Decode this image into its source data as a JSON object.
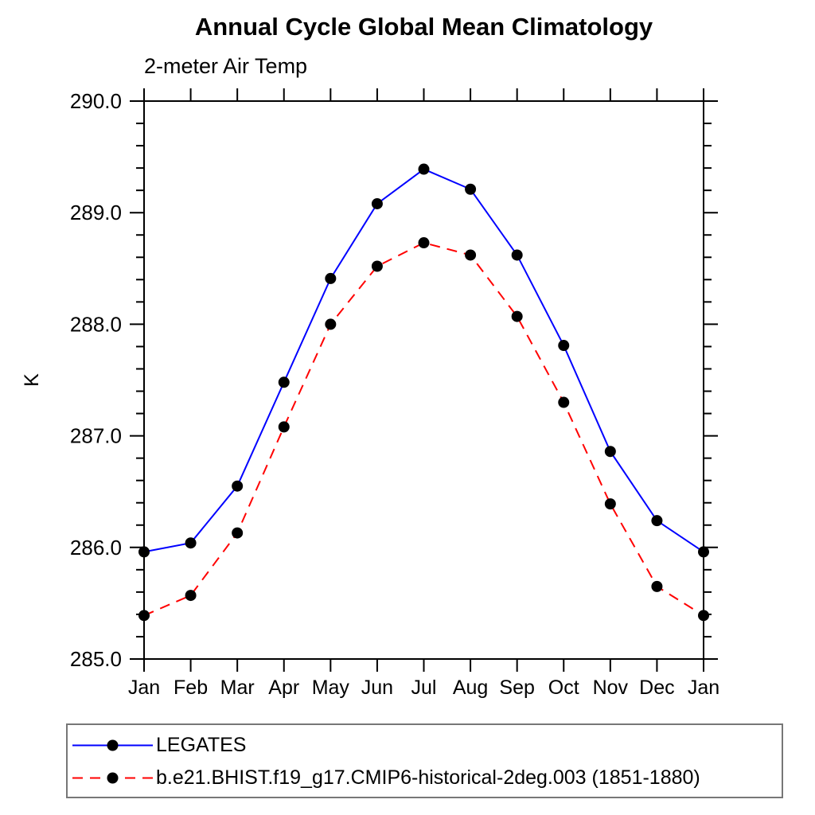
{
  "chart_data": {
    "type": "line",
    "title": "Annual Cycle Global Mean Climatology",
    "subtitle": "2-meter Air Temp",
    "ylabel": "K",
    "x": [
      "Jan",
      "Feb",
      "Mar",
      "Apr",
      "May",
      "Jun",
      "Jul",
      "Aug",
      "Sep",
      "Oct",
      "Nov",
      "Dec",
      "Jan"
    ],
    "ylim": [
      285.0,
      290.0
    ],
    "ytick_labels": [
      "285.0",
      "286.0",
      "287.0",
      "288.0",
      "289.0",
      "290.0"
    ],
    "minor_tick_step": 0.2,
    "grid": false,
    "legend_position": "below-left",
    "axis_color": "#000000",
    "series": [
      {
        "name": "LEGATES",
        "color": "#0000ff",
        "line_style": "solid",
        "marker": "filled-circle",
        "marker_color": "#000000",
        "values": [
          285.96,
          286.04,
          286.55,
          287.48,
          288.41,
          289.08,
          289.39,
          289.21,
          288.62,
          287.81,
          286.86,
          286.24,
          285.96
        ]
      },
      {
        "name": "b.e21.BHIST.f19_g17.CMIP6-historical-2deg.003 (1851-1880)",
        "color": "#ff0000",
        "line_style": "dashed",
        "marker": "filled-circle",
        "marker_color": "#000000",
        "values": [
          285.39,
          285.57,
          286.13,
          287.08,
          288.0,
          288.52,
          288.73,
          288.62,
          288.07,
          287.3,
          286.39,
          285.65,
          285.39
        ]
      }
    ]
  }
}
